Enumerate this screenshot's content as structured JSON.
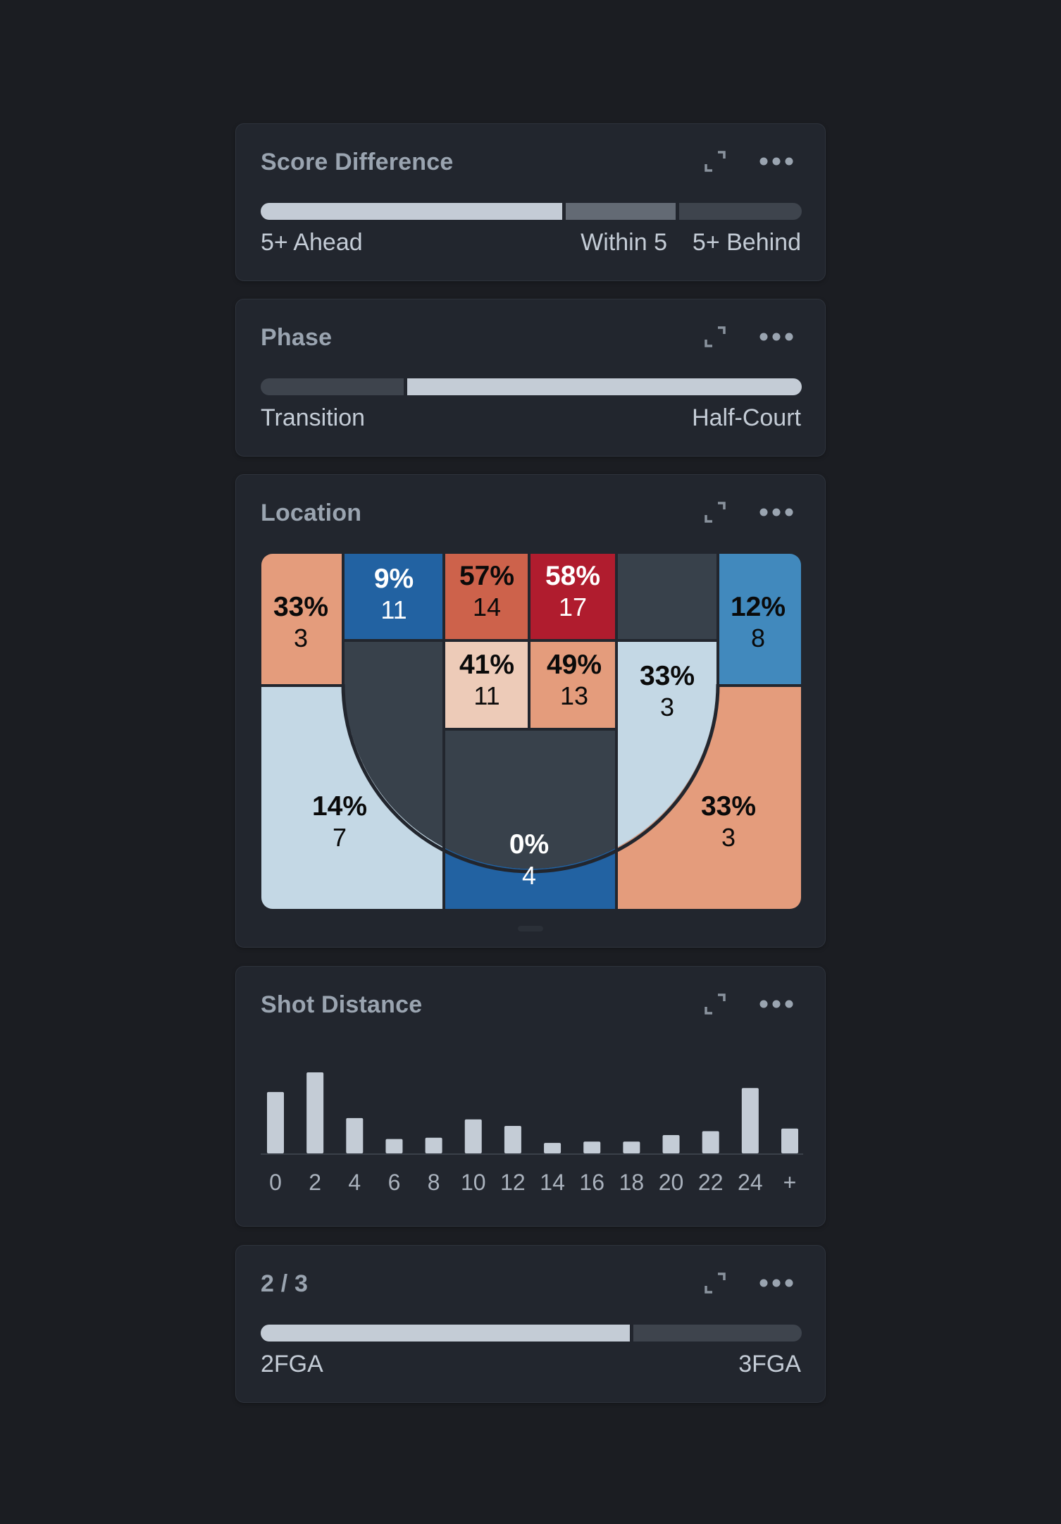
{
  "panels": {
    "score_difference": {
      "title": "Score Difference",
      "segments": [
        {
          "label": "5+ Ahead",
          "share": 0.565
        },
        {
          "label": "Within 5",
          "share": 0.205
        },
        {
          "label": "5+ Behind",
          "share": 0.23
        }
      ]
    },
    "phase": {
      "title": "Phase",
      "segments": [
        {
          "label": "Transition",
          "share": 0.27
        },
        {
          "label": "Half-Court",
          "share": 0.73
        }
      ]
    },
    "location": {
      "title": "Location",
      "zones": {
        "corner_left_three": {
          "pct": "33%",
          "n": "3",
          "color": "#e49c7c"
        },
        "top_left_short": {
          "pct": "9%",
          "n": "11",
          "color": "#2262a2"
        },
        "top_center_left": {
          "pct": "57%",
          "n": "14",
          "color": "#cd624b"
        },
        "top_center_right": {
          "pct": "58%",
          "n": "17",
          "color": "#b01c2e"
        },
        "top_right_short": {
          "pct": "",
          "n": "",
          "color": "#38414b"
        },
        "corner_right_three": {
          "pct": "12%",
          "n": "8",
          "color": "#4189bd"
        },
        "paint_left": {
          "pct": "41%",
          "n": "11",
          "color": "#edcbb8"
        },
        "paint_right": {
          "pct": "49%",
          "n": "13",
          "color": "#e49c7c"
        },
        "elbow_right": {
          "pct": "33%",
          "n": "3",
          "color": "#c4d8e5"
        },
        "wing_left_three": {
          "pct": "14%",
          "n": "7",
          "color": "#c4d8e5"
        },
        "top_of_key_three": {
          "pct": "0%",
          "n": "4",
          "color": "#2262a2"
        },
        "wing_right_three": {
          "pct": "33%",
          "n": "3",
          "color": "#e49c7c"
        }
      }
    },
    "shot_distance": {
      "title": "Shot Distance",
      "chart_data": {
        "type": "bar",
        "categories": [
          "0",
          "2",
          "4",
          "6",
          "8",
          "10",
          "12",
          "14",
          "16",
          "18",
          "20",
          "22",
          "24",
          "+"
        ],
        "values": [
          47,
          62,
          27,
          11,
          12,
          26,
          21,
          8,
          9,
          9,
          14,
          17,
          50,
          19
        ],
        "title": "",
        "xlabel": "",
        "ylabel": "",
        "ylim": [
          0,
          62
        ],
        "grid": false
      }
    },
    "two_three": {
      "title": "2 / 3",
      "segments": [
        {
          "label": "2FGA",
          "share": 0.685
        },
        {
          "label": "3FGA",
          "share": 0.315
        }
      ]
    }
  },
  "icons": {
    "expand": "expand-icon",
    "more": "more-options-icon"
  },
  "colors": {
    "background": "#1b1d22",
    "panel": "#22262e",
    "bar_light": "#c4ccd6",
    "bar_mid": "#636a74",
    "bar_dark": "#3e444d",
    "court_empty": "#38414b"
  }
}
